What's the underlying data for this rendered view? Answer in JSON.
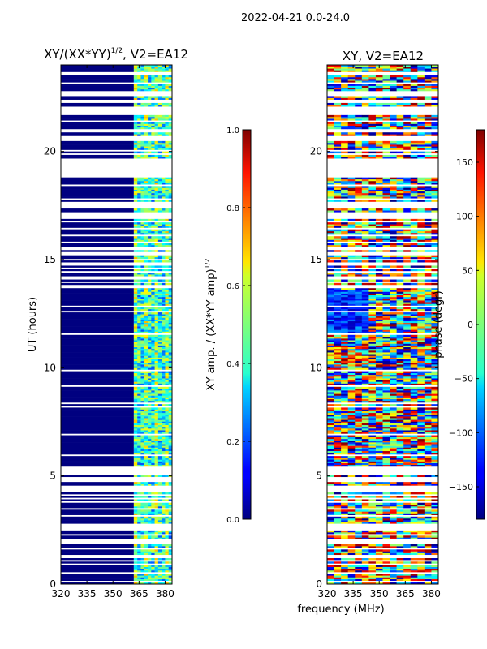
{
  "figure": {
    "suptitle": "2022-04-21 0.0-24.0",
    "shared_xlabel": "frequency (MHz)"
  },
  "chart_data": [
    {
      "type": "heatmap",
      "title_prefix": "XY/(XX*YY)",
      "title_exponent": "1/2",
      "title_suffix": ", V2=EA12",
      "ylabel": "UT (hours)",
      "xlim": [
        320,
        384
      ],
      "ylim": [
        0,
        24
      ],
      "xticks": [
        320,
        335,
        350,
        365,
        380
      ],
      "yticks": [
        0,
        5,
        10,
        15,
        20
      ],
      "colorbar": {
        "label_prefix": "XY amp. / (XX*YY amp)",
        "label_exponent": "1/2",
        "range": [
          0.0,
          1.0
        ],
        "ticks": [
          "0.0",
          "0.2",
          "0.4",
          "0.6",
          "0.8",
          "1.0"
        ],
        "cmap": "jet"
      },
      "description_values": {
        "low_band_MHz": [
          320,
          362
        ],
        "low_band_value": 0.0,
        "high_band_MHz": [
          362,
          384
        ],
        "high_band_value_range": [
          0.2,
          0.6
        ]
      }
    },
    {
      "type": "heatmap",
      "title": "XY, V2=EA12",
      "xlim": [
        320,
        384
      ],
      "ylim": [
        0,
        24
      ],
      "xticks": [
        320,
        335,
        350,
        365,
        380
      ],
      "yticks": [
        0,
        5,
        10,
        15,
        20
      ],
      "colorbar": {
        "label": "phase (degr)",
        "range": [
          -180,
          180
        ],
        "ticks": [
          "−150",
          "−100",
          "−50",
          "0",
          "50",
          "100",
          "150"
        ],
        "tick_values": [
          -150,
          -100,
          -50,
          0,
          50,
          100,
          150
        ],
        "cmap": "jet"
      },
      "description_values": {
        "value_range_deg": [
          -180,
          180
        ]
      }
    }
  ],
  "colors": {
    "background": "#ffffff",
    "low_value": "#00007f",
    "axis": "#000000"
  }
}
